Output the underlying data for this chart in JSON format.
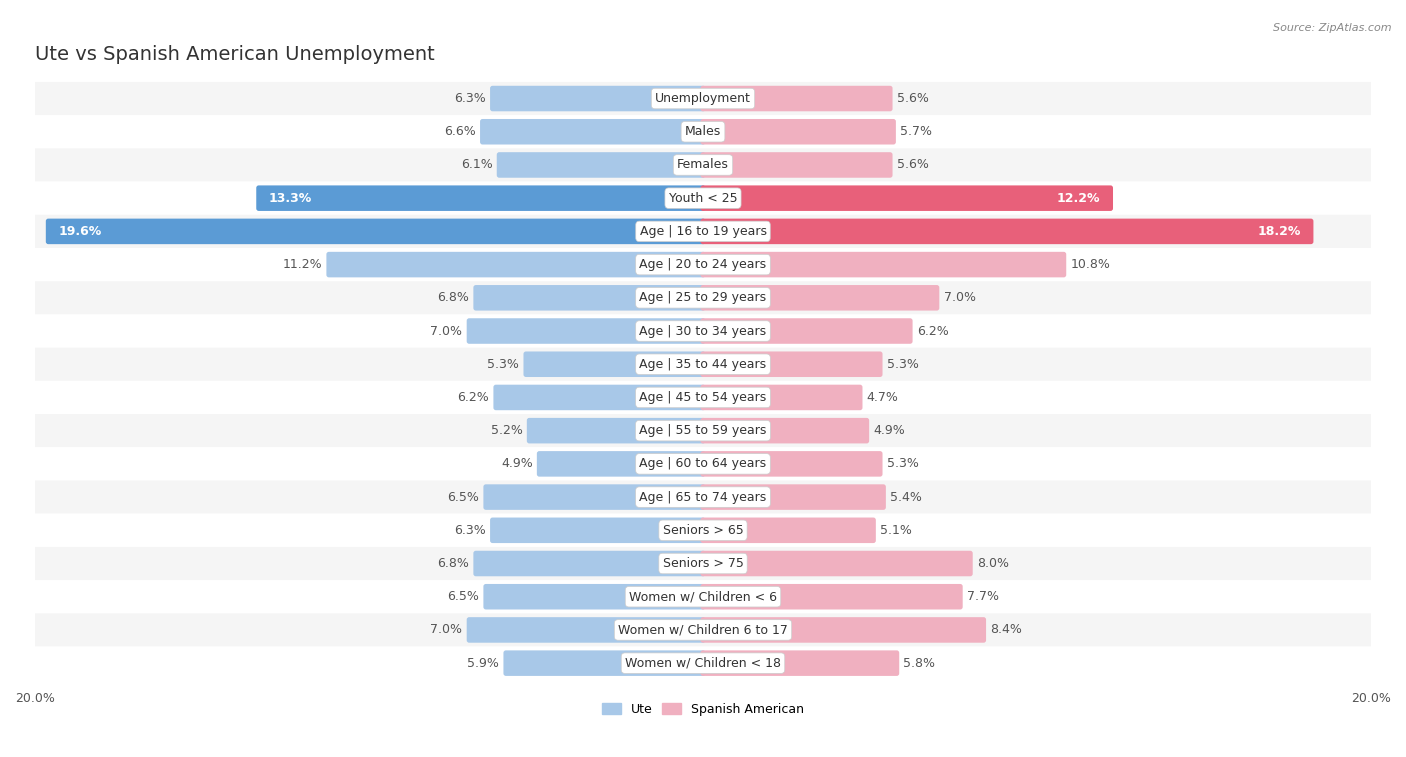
{
  "title": "Ute vs Spanish American Unemployment",
  "source": "Source: ZipAtlas.com",
  "categories": [
    "Unemployment",
    "Males",
    "Females",
    "Youth < 25",
    "Age | 16 to 19 years",
    "Age | 20 to 24 years",
    "Age | 25 to 29 years",
    "Age | 30 to 34 years",
    "Age | 35 to 44 years",
    "Age | 45 to 54 years",
    "Age | 55 to 59 years",
    "Age | 60 to 64 years",
    "Age | 65 to 74 years",
    "Seniors > 65",
    "Seniors > 75",
    "Women w/ Children < 6",
    "Women w/ Children 6 to 17",
    "Women w/ Children < 18"
  ],
  "ute_values": [
    6.3,
    6.6,
    6.1,
    13.3,
    19.6,
    11.2,
    6.8,
    7.0,
    5.3,
    6.2,
    5.2,
    4.9,
    6.5,
    6.3,
    6.8,
    6.5,
    7.0,
    5.9
  ],
  "spanish_values": [
    5.6,
    5.7,
    5.6,
    12.2,
    18.2,
    10.8,
    7.0,
    6.2,
    5.3,
    4.7,
    4.9,
    5.3,
    5.4,
    5.1,
    8.0,
    7.7,
    8.4,
    5.8
  ],
  "ute_color_normal": "#a8c8e8",
  "ute_color_highlight": "#5b9bd5",
  "spanish_color_normal": "#f0b0c0",
  "spanish_color_highlight": "#e8607a",
  "max_val": 20.0,
  "legend_ute": "Ute",
  "legend_spanish": "Spanish American",
  "row_bg_light": "#f0f0f0",
  "row_bg_dark": "#e0e0e0",
  "title_fontsize": 14,
  "label_fontsize": 9,
  "value_fontsize": 9
}
